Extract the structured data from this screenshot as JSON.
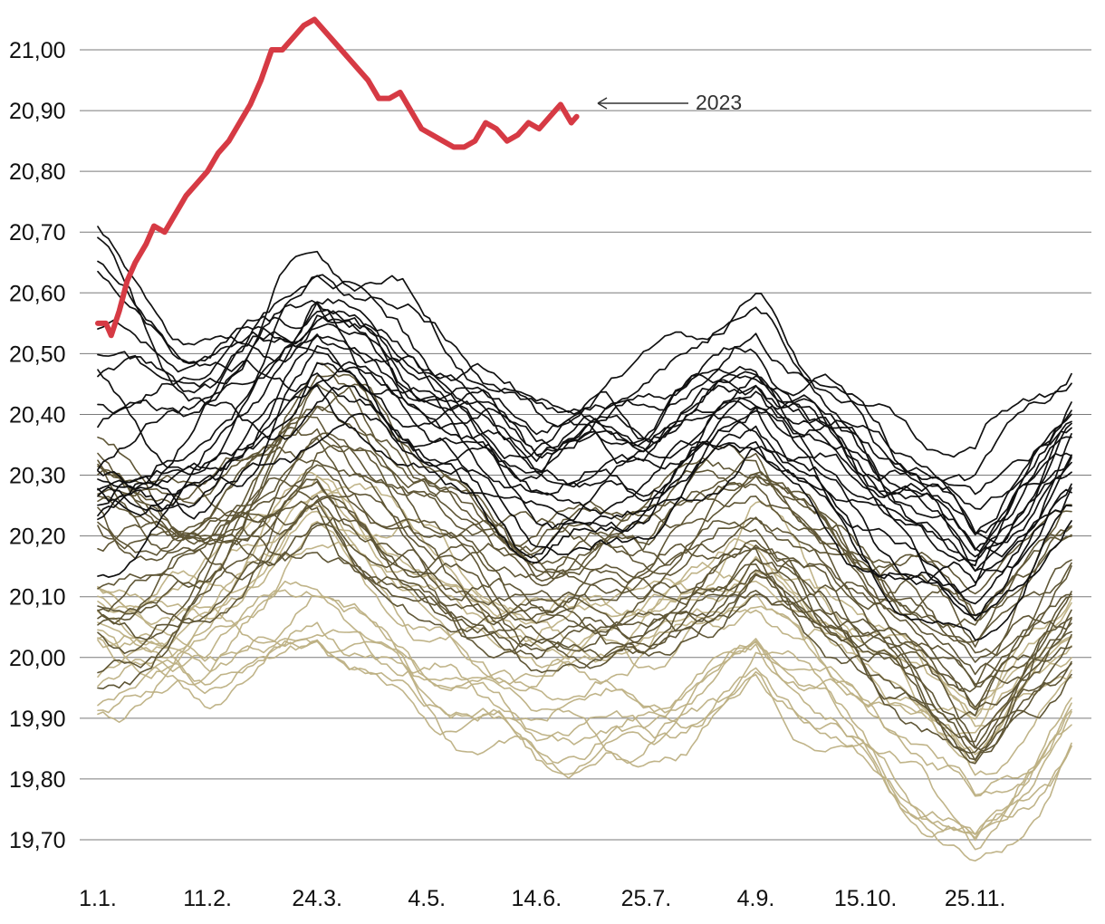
{
  "chart_data": {
    "type": "line",
    "title": "",
    "xlabel": "",
    "ylabel": "",
    "ylim": [
      19.65,
      21.05
    ],
    "y_ticks": [
      {
        "value": 21.0,
        "label": "21,00"
      },
      {
        "value": 20.9,
        "label": "20,90"
      },
      {
        "value": 20.8,
        "label": "20,80"
      },
      {
        "value": 20.7,
        "label": "20,70"
      },
      {
        "value": 20.6,
        "label": "20,60"
      },
      {
        "value": 20.5,
        "label": "20,50"
      },
      {
        "value": 20.4,
        "label": "20,40"
      },
      {
        "value": 20.3,
        "label": "20,30"
      },
      {
        "value": 20.2,
        "label": "20,20"
      },
      {
        "value": 20.1,
        "label": "20,10"
      },
      {
        "value": 20.0,
        "label": "20,00"
      },
      {
        "value": 19.9,
        "label": "19,90"
      },
      {
        "value": 19.8,
        "label": "19,80"
      },
      {
        "value": 19.7,
        "label": "19,70"
      }
    ],
    "x_domain": [
      1,
      365
    ],
    "x_ticks": [
      {
        "day": 1,
        "label": "1.1."
      },
      {
        "day": 42,
        "label": "11.2."
      },
      {
        "day": 83,
        "label": "24.3."
      },
      {
        "day": 124,
        "label": "4.5."
      },
      {
        "day": 165,
        "label": "14.6."
      },
      {
        "day": 206,
        "label": "25.7."
      },
      {
        "day": 247,
        "label": "4.9."
      },
      {
        "day": 288,
        "label": "15.10."
      },
      {
        "day": 329,
        "label": "25.11."
      }
    ],
    "grid": true,
    "highlight": {
      "name": "2023",
      "label": "2023",
      "color": "#d63a44",
      "x": [
        1,
        4,
        6,
        9,
        12,
        15,
        19,
        22,
        26,
        30,
        34,
        38,
        42,
        46,
        50,
        54,
        58,
        62,
        66,
        70,
        74,
        78,
        82,
        86,
        90,
        94,
        98,
        102,
        106,
        110,
        114,
        118,
        122,
        126,
        130,
        134,
        138,
        142,
        146,
        150,
        154,
        158,
        162,
        166,
        170,
        174,
        178,
        180
      ],
      "values": [
        20.55,
        20.55,
        20.53,
        20.57,
        20.62,
        20.65,
        20.68,
        20.71,
        20.7,
        20.73,
        20.76,
        20.78,
        20.8,
        20.83,
        20.85,
        20.88,
        20.91,
        20.95,
        21.0,
        21.0,
        21.02,
        21.04,
        21.05,
        21.03,
        21.01,
        20.99,
        20.97,
        20.95,
        20.92,
        20.92,
        20.93,
        20.9,
        20.87,
        20.86,
        20.85,
        20.84,
        20.84,
        20.85,
        20.88,
        20.87,
        20.85,
        20.86,
        20.88,
        20.87,
        20.89,
        20.91,
        20.88,
        20.89
      ]
    },
    "background_series_groups": [
      {
        "name": "recent",
        "color": "#111111",
        "count": 20,
        "start_range": [
          20.15,
          20.72
        ],
        "offset_range": [
          0.22,
          0.5
        ]
      },
      {
        "name": "middle",
        "color": "#5f5636",
        "count": 22,
        "start_range": [
          19.95,
          20.35
        ],
        "offset_range": [
          0.0,
          0.26
        ]
      },
      {
        "name": "older",
        "color": "#bdb083",
        "count": 16,
        "start_range": [
          19.86,
          20.12
        ],
        "offset_range": [
          -0.18,
          0.08
        ]
      }
    ],
    "seasonal_profile": {
      "x": [
        1,
        42,
        83,
        124,
        165,
        206,
        247,
        288,
        329,
        365
      ],
      "values": [
        19.95,
        20.06,
        20.2,
        20.08,
        19.98,
        20.0,
        20.11,
        19.96,
        19.83,
        20.0
      ]
    },
    "annotation": {
      "label": "2023",
      "arrow": "left"
    }
  }
}
